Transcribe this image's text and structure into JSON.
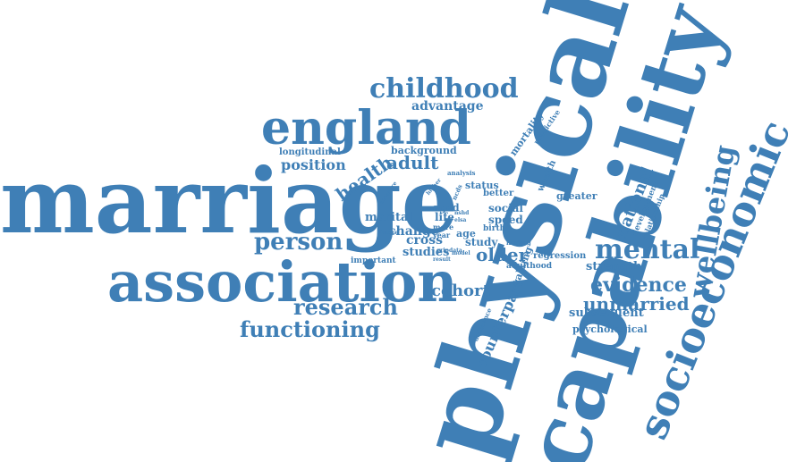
{
  "colors": {
    "word": "#3f7fb6",
    "background": "#ffffff"
  },
  "words": {
    "physical": "physical",
    "capability": "capability",
    "marriage": "marriage",
    "association": "association",
    "england": "england",
    "socioeconomic": "socioeconomic",
    "wellbeing": "wellbeing",
    "childhood": "childhood",
    "mental": "mental",
    "evidence": "evidence",
    "unmarried": "unmarried",
    "research": "research",
    "functioning": "functioning",
    "person": "person",
    "adult": "adult",
    "health": "health",
    "position": "position",
    "national": "national",
    "cohort": "cohort",
    "older": "older",
    "change": "change",
    "cross": "cross",
    "studies": "studies",
    "counterpart": "counterpart",
    "subsequent": "subsequent",
    "psychological": "psychological",
    "strength": "strength",
    "advantage": "advantage",
    "longitudinal": "longitudinal",
    "background": "background",
    "marital": "marital",
    "aged": "aged",
    "life": "life",
    "more": "more",
    "age": "age",
    "study": "study",
    "status": "status",
    "better": "better",
    "social": "social",
    "speed": "speed",
    "birth": "birth",
    "walking": "walking",
    "regression": "regression",
    "greater": "greater",
    "development": "development",
    "relationship": "relationship",
    "mortality": "mortality",
    "predictive": "predictive",
    "wealth": "wealth",
    "analysis": "analysis",
    "important": "important",
    "adulthood": "adulthood",
    "difference": "difference",
    "finding": "finding",
    "year": "year",
    "future": "future",
    "measure": "measure",
    "higher": "higher",
    "result": "result",
    "model": "model",
    "ncds": "ncds",
    "nshd": "nshd",
    "elsa": "elsa",
    "grip": "grip",
    "data": "data"
  }
}
